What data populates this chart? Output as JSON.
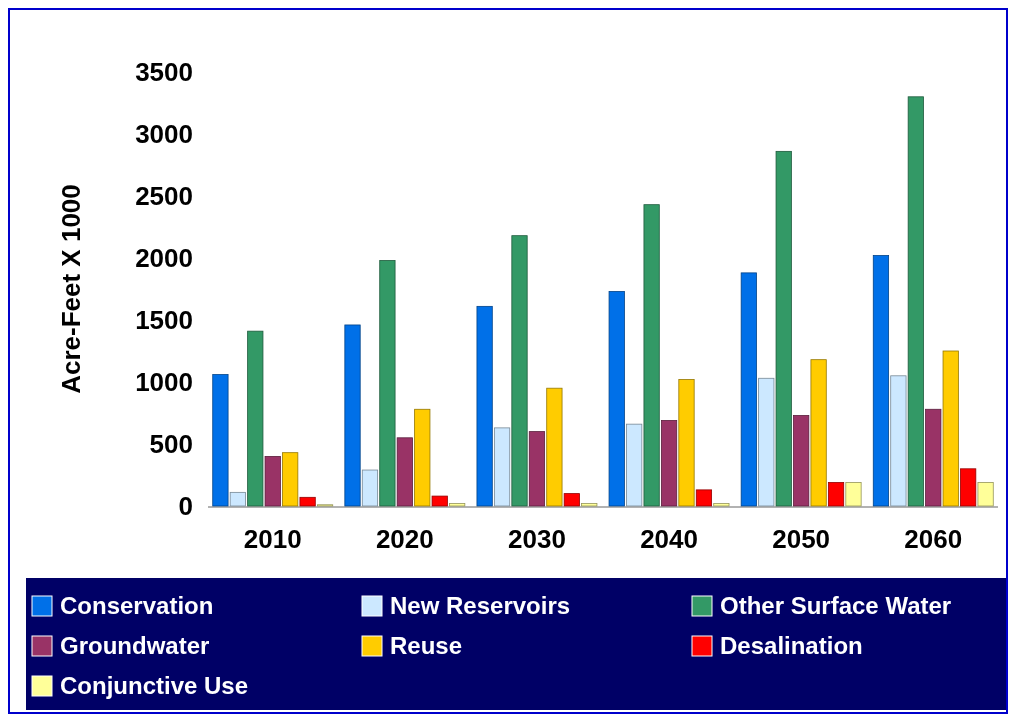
{
  "chart_data": {
    "type": "bar",
    "ylabel": "Acre-Feet X 1000",
    "categories": [
      "2010",
      "2020",
      "2030",
      "2040",
      "2050",
      "2060"
    ],
    "ylim": [
      0,
      3500
    ],
    "yticks": [
      0,
      500,
      1000,
      1500,
      2000,
      2500,
      3000,
      3500
    ],
    "grid": false,
    "legend": "bottom",
    "series": [
      {
        "name": "Conservation",
        "color": "#0070e8",
        "values": [
          1060,
          1460,
          1610,
          1730,
          1880,
          2020
        ]
      },
      {
        "name": "New Reservoirs",
        "color": "#cce8ff",
        "values": [
          110,
          290,
          630,
          660,
          1030,
          1050
        ]
      },
      {
        "name": "Other Surface Water",
        "color": "#339966",
        "values": [
          1410,
          1980,
          2180,
          2430,
          2860,
          3300
        ]
      },
      {
        "name": "Groundwater",
        "color": "#993366",
        "values": [
          400,
          550,
          600,
          690,
          730,
          780
        ]
      },
      {
        "name": "Reuse",
        "color": "#ffcc00",
        "values": [
          430,
          780,
          950,
          1020,
          1180,
          1250
        ]
      },
      {
        "name": "Desalination",
        "color": "#ff0000",
        "values": [
          70,
          80,
          100,
          130,
          190,
          300
        ]
      },
      {
        "name": "Conjunctive Use",
        "color": "#ffff99",
        "values": [
          10,
          20,
          20,
          20,
          190,
          190
        ]
      }
    ]
  }
}
